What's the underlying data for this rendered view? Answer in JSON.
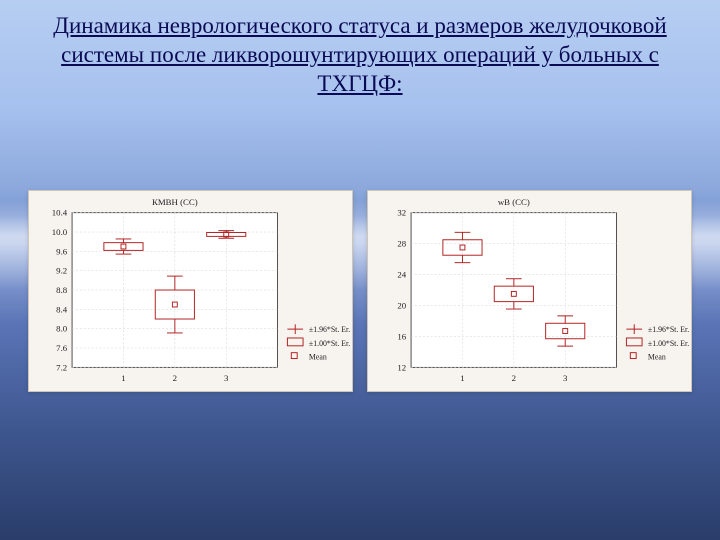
{
  "title_text": "Динамика неврологического статуса и размеров желудочковой системы после ликворошунтирующих операций у больных с ТХГЦФ:",
  "chart_left": {
    "type": "boxplot",
    "title": "КМВН (СС)",
    "title_fontsize": 9,
    "label_fontsize": 9,
    "axis_fontsize": 9,
    "background_color": "#f7f3ef",
    "plot_bg": "#ffffff",
    "grid_color": "#d0d0d0",
    "box_color": "#b22222",
    "text_color": "#222222",
    "categories": [
      "1",
      "2",
      "3"
    ],
    "ylim": [
      7.2,
      10.4
    ],
    "ytick_step": 0.4,
    "series": [
      {
        "mean": 9.7,
        "sd": 0.22,
        "se": 0.08
      },
      {
        "mean": 8.5,
        "sd": 0.7,
        "se": 0.3
      },
      {
        "mean": 9.95,
        "sd": 0.1,
        "se": 0.04
      }
    ],
    "legend": [
      "±1.96*St. Er.",
      "±1.00*St. Er.",
      "Mean"
    ]
  },
  "chart_right": {
    "type": "boxplot",
    "title": "wВ (СС)",
    "title_fontsize": 9,
    "label_fontsize": 9,
    "axis_fontsize": 9,
    "background_color": "#f7f3ef",
    "plot_bg": "#ffffff",
    "grid_color": "#d0d0d0",
    "box_color": "#b22222",
    "text_color": "#222222",
    "categories": [
      "1",
      "2",
      "3"
    ],
    "ylim": [
      12,
      32
    ],
    "ytick_step": 4,
    "series": [
      {
        "mean": 27.5,
        "sd": 2.2,
        "se": 1.0
      },
      {
        "mean": 21.5,
        "sd": 2.0,
        "se": 1.0
      },
      {
        "mean": 16.7,
        "sd": 2.2,
        "se": 1.0
      }
    ],
    "legend": [
      "±1.96*St. Er.",
      "±1.00*St. Er.",
      "Mean"
    ]
  }
}
